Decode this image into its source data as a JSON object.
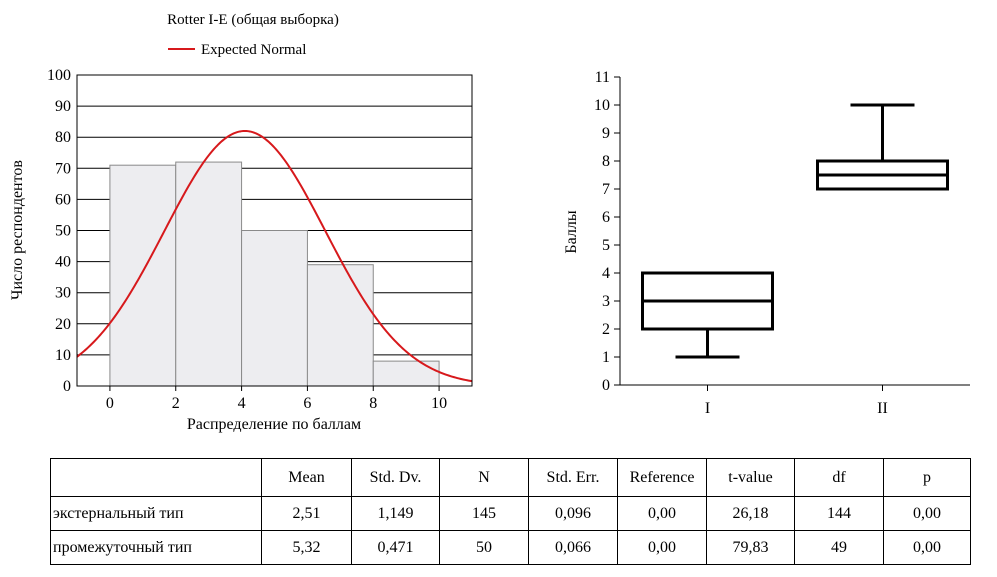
{
  "chart_data": [
    {
      "type": "bar",
      "title": "Rotter I-E (общая выборка)",
      "legend": {
        "entries": [
          "Expected Normal"
        ],
        "placement": "top"
      },
      "xlabel": "Распределение по баллам",
      "ylabel": "Число респондентов",
      "xlim": [
        -1,
        11
      ],
      "ylim": [
        0,
        100
      ],
      "xticks": [
        "0",
        "2",
        "4",
        "6",
        "8",
        "10"
      ],
      "yticks": [
        "0",
        "10",
        "20",
        "30",
        "40",
        "50",
        "60",
        "70",
        "80",
        "90",
        "100"
      ],
      "grid": true,
      "bins": [
        {
          "from": 0,
          "to": 2,
          "value": 71
        },
        {
          "from": 2,
          "to": 4,
          "value": 72
        },
        {
          "from": 4,
          "to": 6,
          "value": 50
        },
        {
          "from": 6,
          "to": 8,
          "value": 39
        },
        {
          "from": 8,
          "to": 10,
          "value": 8
        }
      ],
      "normal_curve": {
        "name": "Expected Normal",
        "mean": 4.1,
        "sd": 2.45,
        "peak": 82,
        "color": "#d7191c"
      },
      "bar_fill": "#ededf0"
    },
    {
      "type": "box",
      "ylabel": "Баллы",
      "ylim": [
        0,
        11
      ],
      "yticks": [
        "0",
        "1",
        "2",
        "3",
        "4",
        "5",
        "6",
        "7",
        "8",
        "9",
        "10",
        "11"
      ],
      "categories": [
        "I",
        "II"
      ],
      "boxes": [
        {
          "category": "I",
          "min": 1,
          "q1": 2,
          "median": 3,
          "q3": 4,
          "max": 4
        },
        {
          "category": "II",
          "min": 7,
          "q1": 7,
          "median": 7.5,
          "q3": 8,
          "max": 10
        }
      ]
    }
  ],
  "table": {
    "headers": [
      "",
      "Mean",
      "Std. Dv.",
      "N",
      "Std. Err.",
      "Reference",
      "t-value",
      "df",
      "p"
    ],
    "rows": [
      [
        "экстернальный тип",
        "2,51",
        "1,149",
        "145",
        "0,096",
        "0,00",
        "26,18",
        "144",
        "0,00"
      ],
      [
        "промежуточный тип",
        "5,32",
        "0,471",
        "50",
        "0,066",
        "0,00",
        "79,83",
        "49",
        "0,00"
      ]
    ]
  }
}
